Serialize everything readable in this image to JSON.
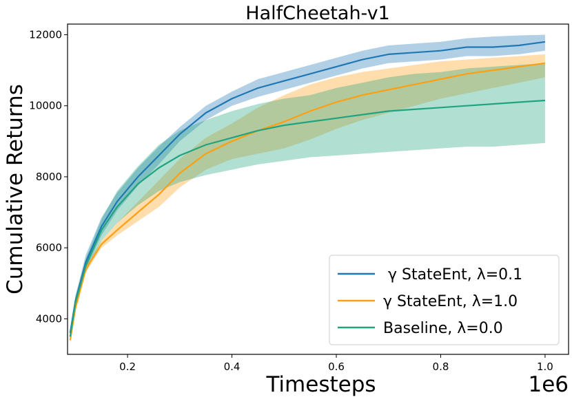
{
  "chart_data": {
    "type": "line",
    "title": "HalfCheetah-v1",
    "xlabel": "Timesteps",
    "ylabel": "Cumulative Returns",
    "x_offset_text": "1e6",
    "xlim": [
      0.085,
      1.045
    ],
    "ylim": [
      3000,
      12300
    ],
    "xticks": [
      0.2,
      0.4,
      0.6,
      0.8,
      1.0
    ],
    "xtick_labels": [
      "0.2",
      "0.4",
      "0.6",
      "0.8",
      "1.0"
    ],
    "yticks": [
      4000,
      6000,
      8000,
      10000,
      12000
    ],
    "ytick_labels": [
      "4000",
      "6000",
      "8000",
      "10000",
      "12000"
    ],
    "legend_position": "lower-right",
    "series": [
      {
        "name": " γ StateEnt, λ=0.1",
        "color": "#1f77b4",
        "x": [
          0.09,
          0.1,
          0.12,
          0.15,
          0.18,
          0.22,
          0.26,
          0.3,
          0.35,
          0.4,
          0.45,
          0.5,
          0.55,
          0.6,
          0.65,
          0.7,
          0.75,
          0.8,
          0.85,
          0.9,
          0.95,
          1.0
        ],
        "mean": [
          3600,
          4500,
          5600,
          6600,
          7300,
          8000,
          8600,
          9200,
          9800,
          10200,
          10500,
          10700,
          10900,
          11100,
          11300,
          11450,
          11500,
          11550,
          11650,
          11650,
          11700,
          11800
        ],
        "upper": [
          3700,
          4650,
          5800,
          6850,
          7550,
          8250,
          8850,
          9400,
          10000,
          10400,
          10750,
          10950,
          11150,
          11350,
          11550,
          11700,
          11750,
          11800,
          11900,
          11950,
          11980,
          12000
        ],
        "lower": [
          3500,
          4350,
          5400,
          6350,
          7050,
          7750,
          8350,
          9000,
          9600,
          10000,
          10250,
          10450,
          10650,
          10850,
          11050,
          11200,
          11250,
          11300,
          11400,
          11400,
          11450,
          11550
        ]
      },
      {
        "name": "γ StateEnt, λ=1.0",
        "color": "#ff9f10",
        "x": [
          0.09,
          0.1,
          0.12,
          0.15,
          0.18,
          0.22,
          0.26,
          0.3,
          0.35,
          0.4,
          0.45,
          0.5,
          0.55,
          0.6,
          0.65,
          0.7,
          0.75,
          0.8,
          0.85,
          0.9,
          0.95,
          1.0
        ],
        "mean": [
          3400,
          4300,
          5400,
          6100,
          6500,
          7000,
          7500,
          8100,
          8650,
          9000,
          9300,
          9550,
          9850,
          10100,
          10300,
          10450,
          10600,
          10750,
          10900,
          11000,
          11100,
          11200
        ],
        "upper": [
          3500,
          4400,
          5500,
          6200,
          6700,
          7300,
          7900,
          8500,
          9100,
          9500,
          9950,
          10300,
          10600,
          10800,
          10950,
          11050,
          11150,
          11250,
          11300,
          11350,
          11400,
          11450
        ],
        "lower": [
          3300,
          4200,
          5300,
          6000,
          6350,
          6750,
          7150,
          7700,
          8200,
          8500,
          8650,
          8800,
          9050,
          9350,
          9600,
          9800,
          10000,
          10200,
          10350,
          10500,
          10650,
          10800
        ]
      },
      {
        "name": "Baseline, λ=0.0",
        "color": "#20a37f",
        "x": [
          0.09,
          0.1,
          0.12,
          0.15,
          0.18,
          0.22,
          0.26,
          0.3,
          0.35,
          0.4,
          0.45,
          0.5,
          0.55,
          0.6,
          0.65,
          0.7,
          0.75,
          0.8,
          0.85,
          0.9,
          0.95,
          1.0
        ],
        "mean": [
          3500,
          4450,
          5500,
          6500,
          7150,
          7800,
          8250,
          8600,
          8900,
          9100,
          9300,
          9450,
          9550,
          9650,
          9750,
          9850,
          9900,
          9950,
          10000,
          10050,
          10100,
          10150
        ],
        "upper": [
          3600,
          4600,
          5700,
          6800,
          7600,
          8300,
          8900,
          9300,
          9600,
          9850,
          10050,
          10200,
          10300,
          10500,
          10650,
          10800,
          10900,
          10950,
          11050,
          11100,
          11150,
          11200
        ],
        "lower": [
          3400,
          4300,
          5300,
          6200,
          6700,
          7200,
          7600,
          7850,
          8050,
          8200,
          8350,
          8450,
          8550,
          8600,
          8650,
          8700,
          8750,
          8800,
          8850,
          8850,
          8900,
          8950
        ]
      }
    ]
  }
}
